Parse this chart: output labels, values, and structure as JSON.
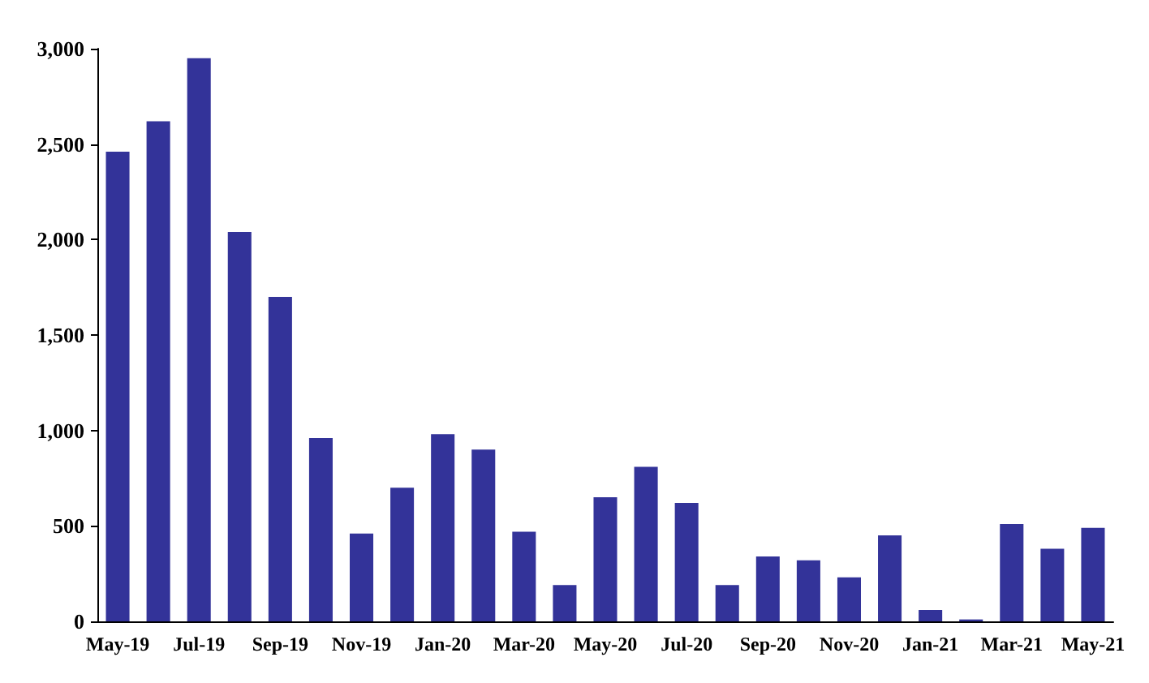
{
  "chart_data": {
    "type": "bar",
    "categories": [
      "May-19",
      null,
      "Jul-19",
      null,
      "Sep-19",
      null,
      "Nov-19",
      null,
      "Jan-20",
      null,
      "Mar-20",
      null,
      "May-20",
      null,
      "Jul-20",
      null,
      "Sep-20",
      null,
      "Nov-20",
      null,
      "Jan-21",
      null,
      "Mar-21",
      null,
      "May-21"
    ],
    "values": [
      2460,
      2620,
      2950,
      2040,
      1700,
      960,
      460,
      700,
      980,
      900,
      470,
      190,
      650,
      810,
      620,
      190,
      340,
      320,
      230,
      450,
      60,
      10,
      510,
      380,
      490
    ],
    "color": "#333399",
    "ylim": [
      0,
      3000
    ],
    "yticks": [
      {
        "value": 0,
        "label": "0"
      },
      {
        "value": 500,
        "label": "500"
      },
      {
        "value": 1000,
        "label": "1,000"
      },
      {
        "value": 1500,
        "label": "1,500"
      },
      {
        "value": 2000,
        "label": "2,000"
      },
      {
        "value": 2500,
        "label": "2,500"
      },
      {
        "value": 3000,
        "label": "3,000"
      }
    ],
    "grid": false
  }
}
